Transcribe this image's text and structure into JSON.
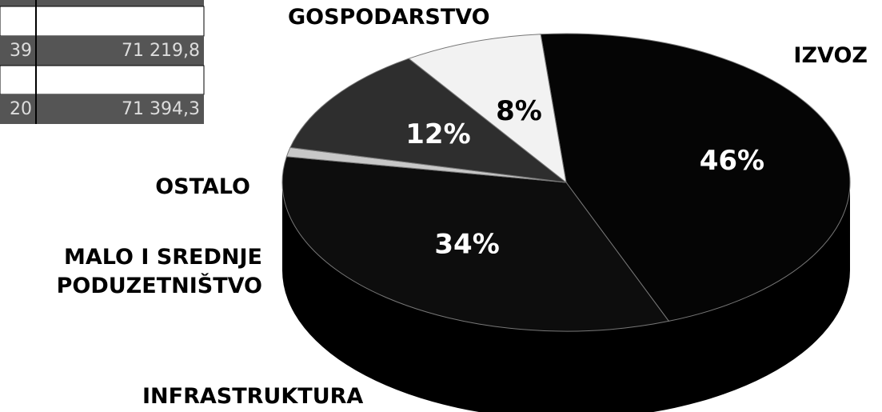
{
  "chart_data": {
    "type": "pie",
    "categories": [
      "IZVOZ",
      "GOSPODARSTVO",
      "OSTALO",
      "MALO I SREDNJE PODUZETNIŠTVO",
      "INFRASTRUKTURA"
    ],
    "values": [
      46,
      34,
      1,
      12,
      8
    ],
    "value_labels": [
      "46%",
      "34%",
      null,
      "12%",
      "8%"
    ],
    "colors": [
      "#050505",
      "#0d0d0d",
      "#c8c8c8",
      "#2e2e2e",
      "#f2f2f2"
    ]
  },
  "table": {
    "rows": [
      [
        "39",
        "71 219,8"
      ],
      [
        "20",
        "71 394,3"
      ]
    ]
  }
}
